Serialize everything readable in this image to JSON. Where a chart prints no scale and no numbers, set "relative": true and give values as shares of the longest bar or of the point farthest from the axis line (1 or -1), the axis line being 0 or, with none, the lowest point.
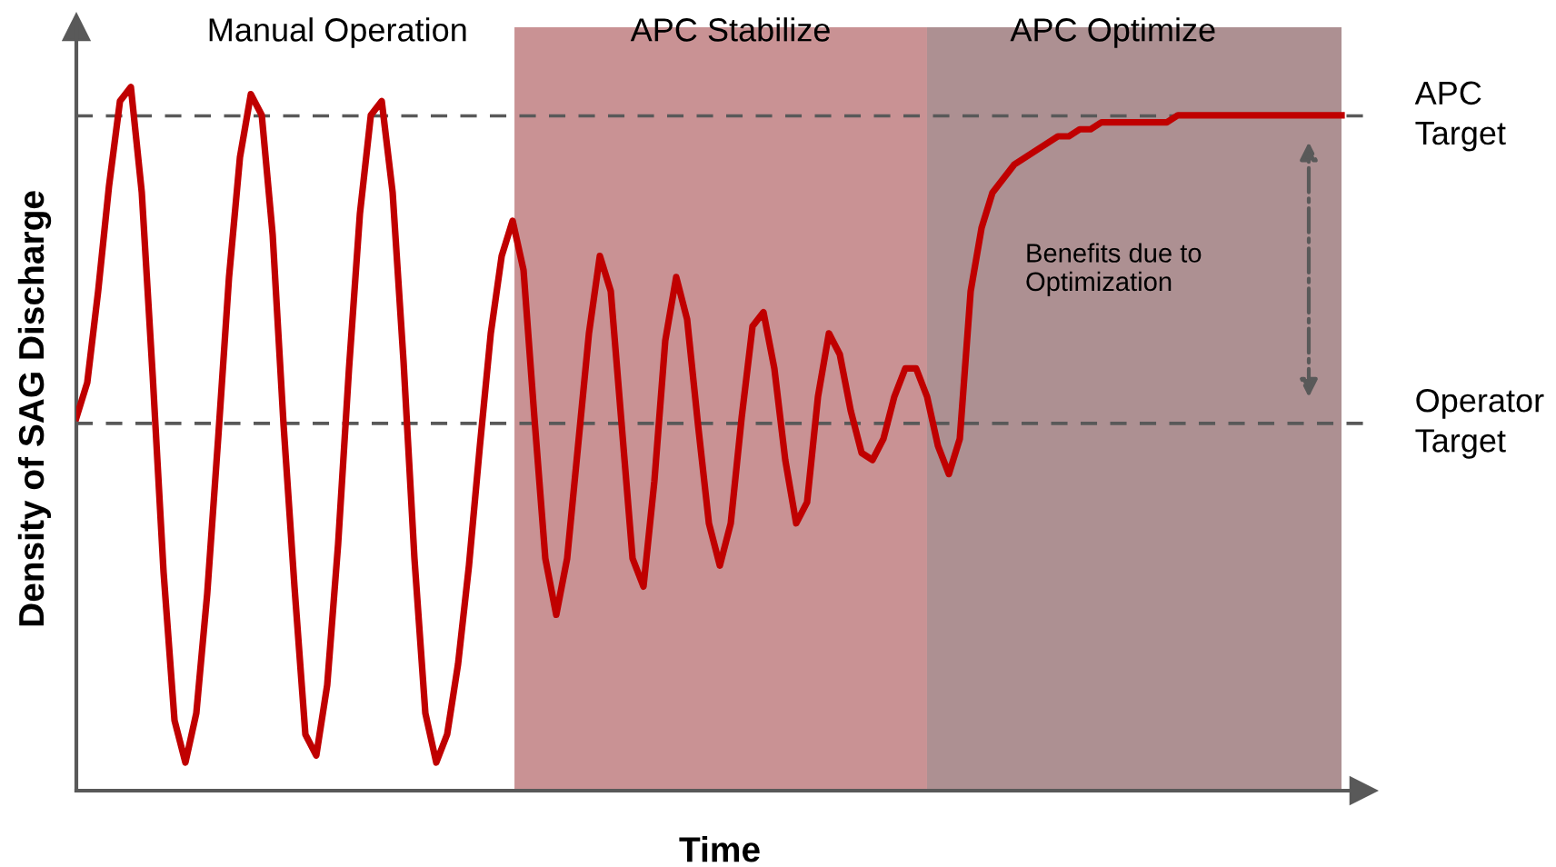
{
  "chart_data": {
    "type": "line",
    "relative": true,
    "xlabel": "Time",
    "ylabel": "Density of SAG Discharge",
    "categories": [
      null,
      null,
      null,
      null,
      null,
      null,
      null,
      null,
      null,
      null,
      null,
      null,
      null,
      null,
      null,
      null,
      null,
      null,
      null,
      null,
      null,
      null,
      null,
      null,
      null,
      null,
      null,
      null,
      null,
      null,
      null,
      null,
      null,
      null,
      null,
      null,
      null,
      null,
      null,
      null,
      null,
      null,
      null,
      null,
      null,
      null,
      null,
      null,
      null,
      null,
      null,
      null,
      null,
      null,
      null,
      null,
      null,
      null,
      null,
      null,
      null,
      null,
      null,
      null,
      null,
      null,
      null,
      null,
      null,
      null,
      null,
      null,
      null,
      null,
      null,
      null,
      null,
      null,
      null,
      null,
      null,
      null,
      null,
      null,
      null,
      null,
      null,
      null,
      null,
      null,
      null,
      null,
      null,
      null,
      null,
      null,
      null,
      null,
      null,
      null,
      null,
      null,
      null,
      null,
      null,
      null,
      null,
      null,
      null,
      null,
      null,
      null,
      null,
      null,
      null,
      null,
      null
    ],
    "series": [
      {
        "color": "#c00000",
        "values": [
          0.53,
          0.58,
          0.71,
          0.86,
          0.98,
          1.0,
          0.85,
          0.59,
          0.31,
          0.1,
          0.04,
          0.11,
          0.28,
          0.5,
          0.73,
          0.9,
          0.99,
          0.96,
          0.79,
          0.52,
          0.29,
          0.08,
          0.05,
          0.15,
          0.35,
          0.6,
          0.82,
          0.96,
          0.98,
          0.85,
          0.61,
          0.33,
          0.11,
          0.04,
          0.08,
          0.18,
          0.32,
          0.49,
          0.65,
          0.76,
          0.81,
          0.74,
          0.53,
          0.33,
          0.25,
          0.33,
          0.49,
          0.65,
          0.76,
          0.71,
          0.52,
          0.33,
          0.29,
          0.44,
          0.64,
          0.73,
          0.67,
          0.52,
          0.38,
          0.32,
          0.38,
          0.53,
          0.66,
          0.68,
          0.6,
          0.47,
          0.38,
          0.41,
          0.56,
          0.65,
          0.62,
          0.54,
          0.48,
          0.47,
          0.5,
          0.56,
          0.6,
          0.6,
          0.56,
          0.49,
          0.45,
          0.5,
          0.71,
          0.8,
          0.85,
          0.87,
          0.89,
          0.9,
          0.91,
          0.92,
          0.93,
          0.93,
          0.94,
          0.94,
          0.95,
          0.95,
          0.95,
          0.95,
          0.95,
          0.95,
          0.95,
          0.96,
          0.96,
          0.96,
          0.96,
          0.96,
          0.96,
          0.96,
          0.96,
          0.96,
          0.96,
          0.96,
          0.96,
          0.96,
          0.96,
          0.96,
          0.96
        ]
      }
    ],
    "ref_lines": [
      {
        "axis": "y",
        "value": 0.522,
        "label": "Operator\nTarget",
        "color": "#595959",
        "line_style": "dashed"
      },
      {
        "axis": "y",
        "value": 0.959,
        "label": "APC\nTarget",
        "color": "#595959",
        "line_style": "dashed"
      }
    ],
    "annotations": [
      "Manual Operation",
      "Benefits due to\nOptimization",
      "APC Stabilize",
      "APC Optimize"
    ],
    "legend": false,
    "marker": "none",
    "line_style": "solid"
  }
}
